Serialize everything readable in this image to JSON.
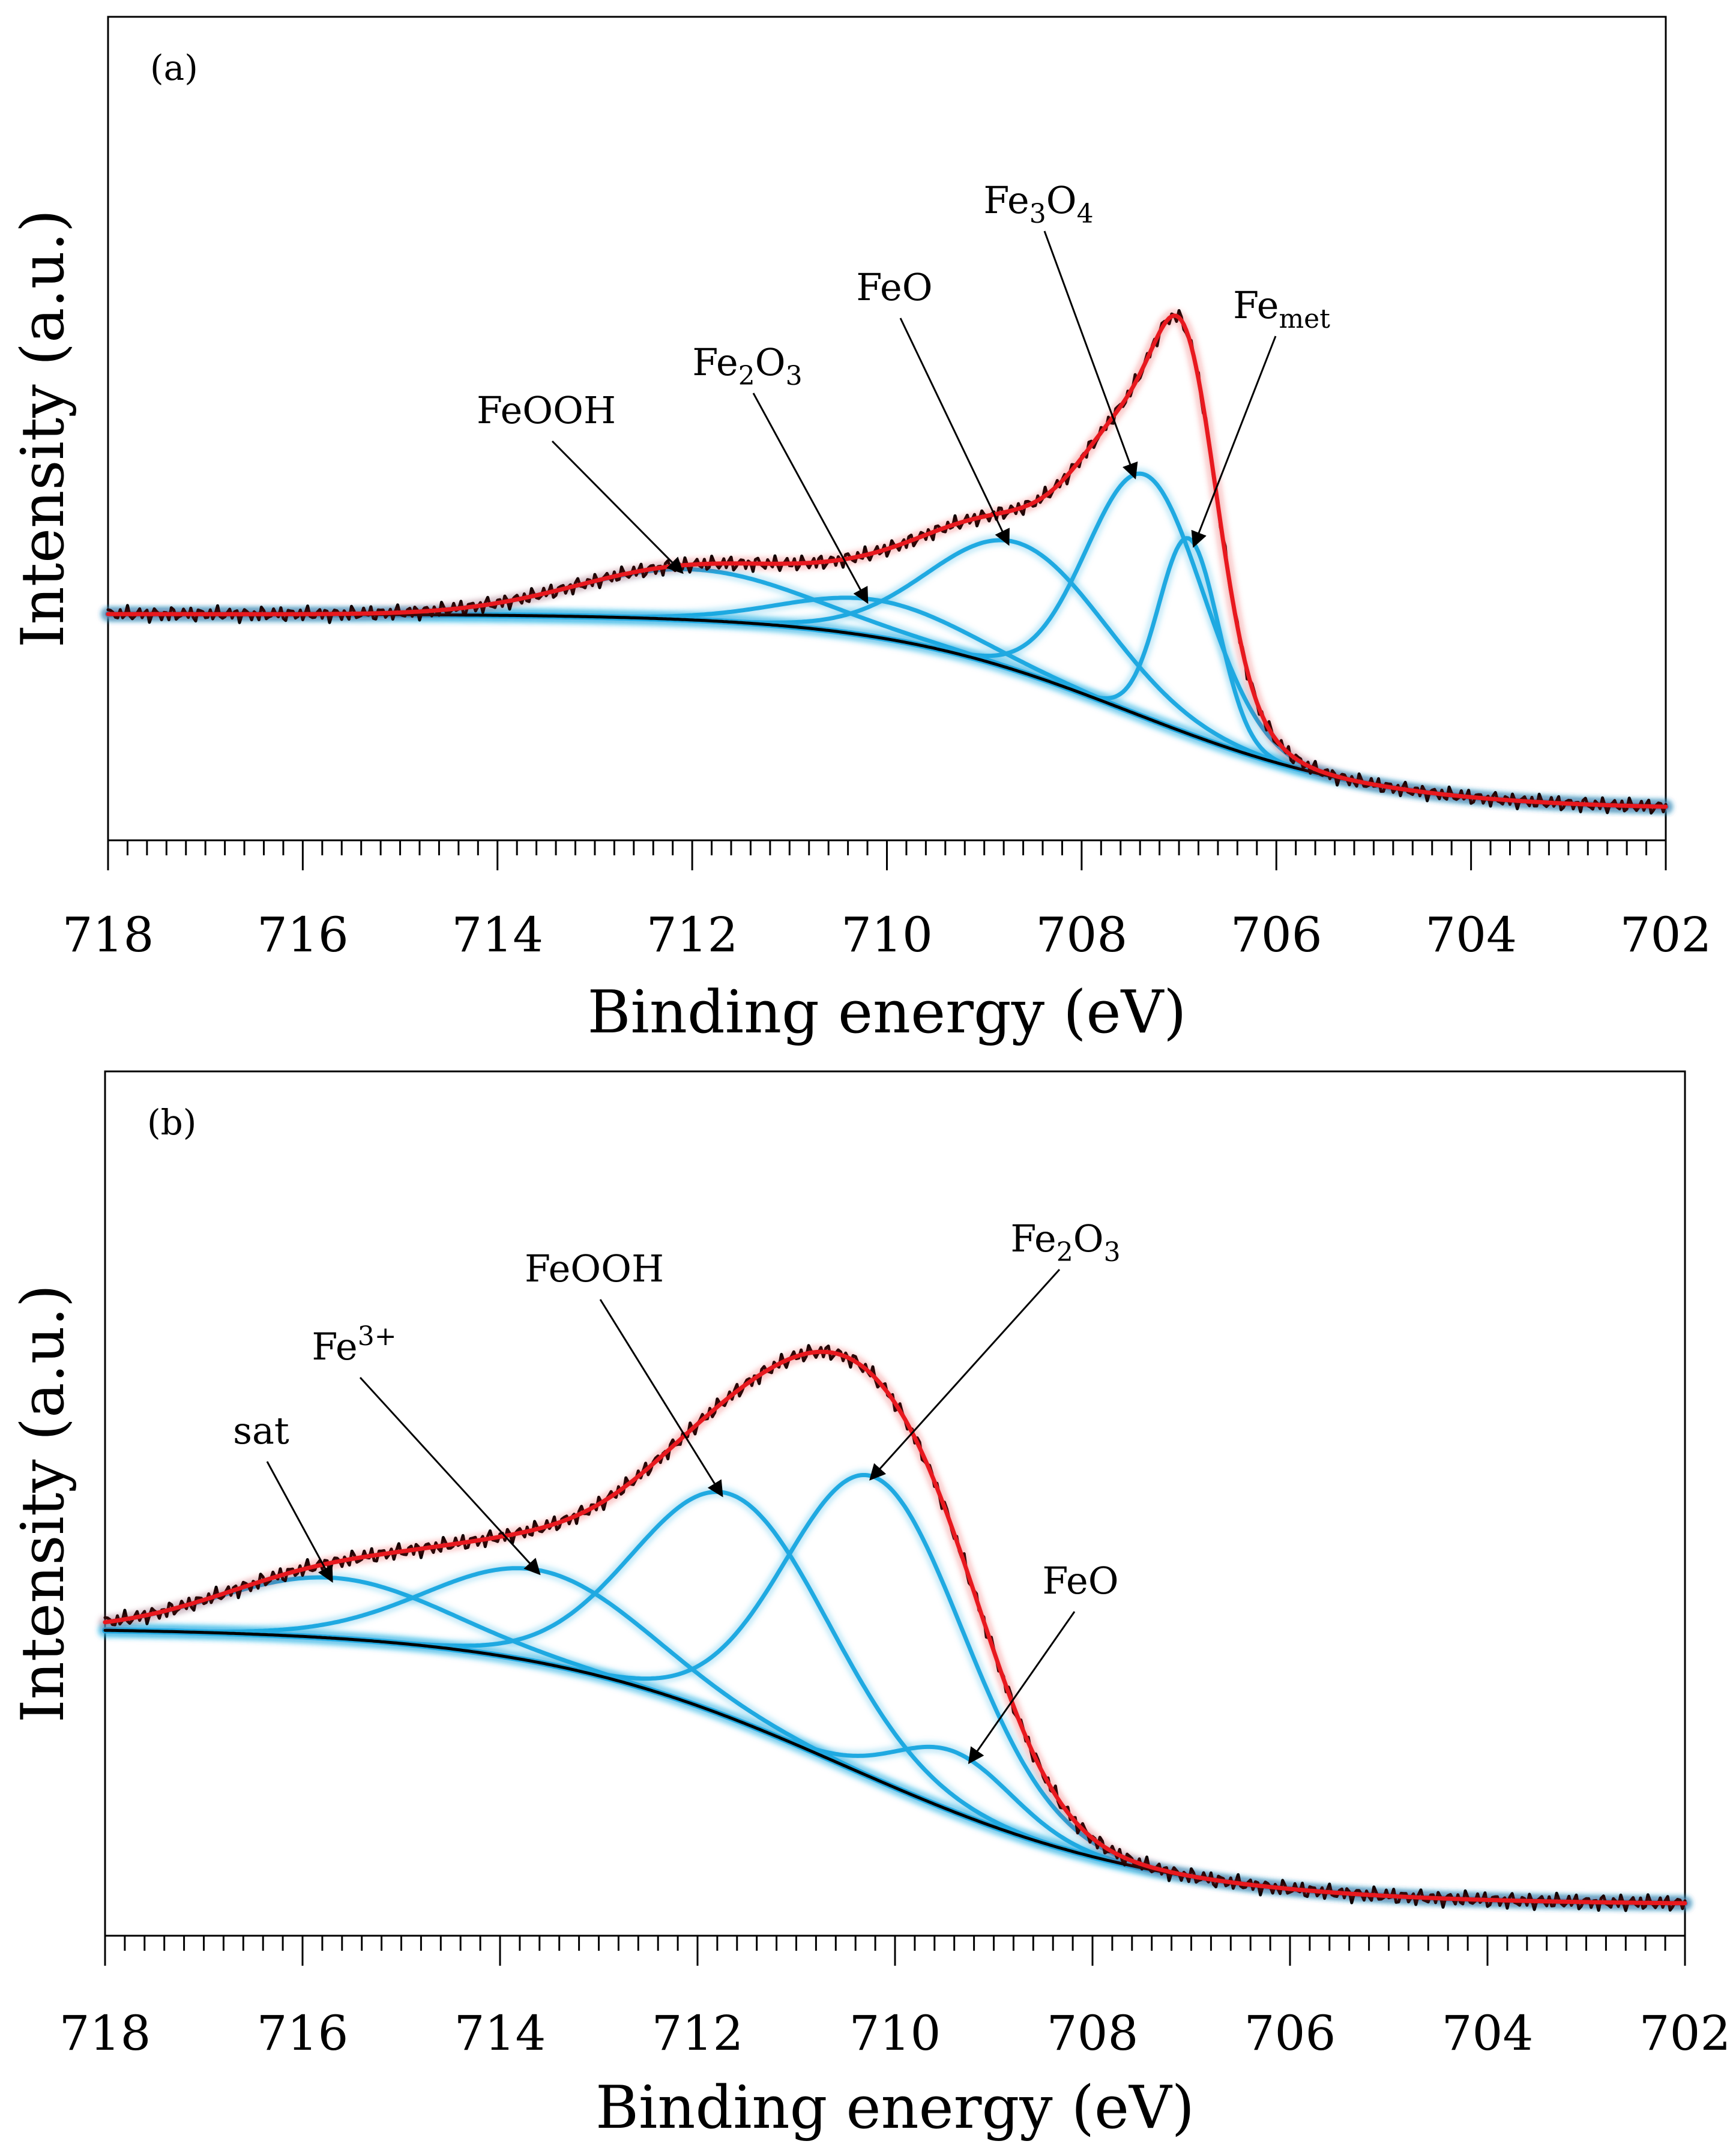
{
  "chart_data": [
    {
      "type": "line",
      "panel_label": "(a)",
      "title": "",
      "xlabel": "Binding energy (eV)",
      "ylabel": "Intensity (a.u.)",
      "xlim": [
        718,
        702
      ],
      "x_reversed": true,
      "ylim": [
        0,
        1.15
      ],
      "xticks": [
        "718",
        "716",
        "714",
        "712",
        "710",
        "708",
        "706",
        "704",
        "702"
      ],
      "grid": false,
      "legend": "none",
      "colors": {
        "measured": "#000000",
        "envelope": "#e8181e",
        "component": "#1fa9e1",
        "background": "#000000"
      },
      "background": {
        "low": 0.01,
        "high": 0.3,
        "center": 707.5,
        "width": 1.3
      },
      "components": [
        {
          "name": "FeOOH",
          "center": 712.0,
          "height": 0.075,
          "fwhm": 2.8
        },
        {
          "name": "Fe2O3",
          "center": 710.1,
          "height": 0.055,
          "fwhm": 2.2
        },
        {
          "name": "FeO",
          "center": 708.65,
          "height": 0.19,
          "fwhm": 2.1
        },
        {
          "name": "Fe3O4",
          "center": 707.35,
          "height": 0.36,
          "fwhm": 1.4
        },
        {
          "name": "Femet",
          "center": 706.9,
          "height": 0.29,
          "fwhm": 0.72
        }
      ],
      "annotations": [
        {
          "name": "FeOOH",
          "label": "FeOOH",
          "target_x": 712.1,
          "target": "FeOOH"
        },
        {
          "name": "Fe2O3",
          "label": "Fe",
          "sub": "2",
          "label2": "O",
          "sub2": "3",
          "target_x": 710.2,
          "target": "Fe2O3"
        },
        {
          "name": "FeO",
          "label": "FeO",
          "target_x": 708.75,
          "target": "FeO"
        },
        {
          "name": "Fe3O4",
          "label": "Fe",
          "sub": "3",
          "label2": "O",
          "sub2": "4",
          "target_x": 707.45,
          "target": "Fe3O4"
        },
        {
          "name": "Femet",
          "label": "Fe",
          "sub": "met",
          "target_x": 706.85,
          "target": "Femet"
        }
      ]
    },
    {
      "type": "line",
      "panel_label": "(b)",
      "title": "",
      "xlabel": "Binding energy (eV)",
      "ylabel": "Intensity (a.u.)",
      "xlim": [
        718,
        702
      ],
      "x_reversed": true,
      "ylim": [
        0,
        1.15
      ],
      "xticks": [
        "718",
        "716",
        "714",
        "712",
        "710",
        "708",
        "706",
        "704",
        "702"
      ],
      "grid": false,
      "legend": "none",
      "colors": {
        "measured": "#000000",
        "envelope": "#e8181e",
        "component": "#1fa9e1",
        "background": "#000000"
      },
      "background": {
        "low": 0.01,
        "high": 0.4,
        "center": 710.5,
        "width": 1.6
      },
      "components": [
        {
          "name": "sat",
          "center": 715.7,
          "height": 0.085,
          "fwhm": 2.7
        },
        {
          "name": "Fe3+",
          "center": 713.6,
          "height": 0.13,
          "fwhm": 2.6
        },
        {
          "name": "FeOOH",
          "center": 711.65,
          "height": 0.315,
          "fwhm": 2.3
        },
        {
          "name": "Fe2O3",
          "center": 710.2,
          "height": 0.425,
          "fwhm": 2.1
        },
        {
          "name": "FeO",
          "center": 709.4,
          "height": 0.085,
          "fwhm": 1.4
        }
      ],
      "annotations": [
        {
          "name": "sat",
          "label": "sat",
          "target_x": 715.7,
          "target": "sat"
        },
        {
          "name": "Fe3plus",
          "label": "Fe",
          "sup": "3+",
          "target_x": 713.6,
          "target": "Fe3+"
        },
        {
          "name": "FeOOH",
          "label": "FeOOH",
          "target_x": 711.75,
          "target": "FeOOH"
        },
        {
          "name": "Fe2O3",
          "label": "Fe",
          "sub": "2",
          "label2": "O",
          "sub2": "3",
          "target_x": 710.25,
          "target": "Fe2O3"
        },
        {
          "name": "FeO",
          "label": "FeO",
          "target_x": 709.25,
          "target": "FeO"
        }
      ]
    }
  ]
}
